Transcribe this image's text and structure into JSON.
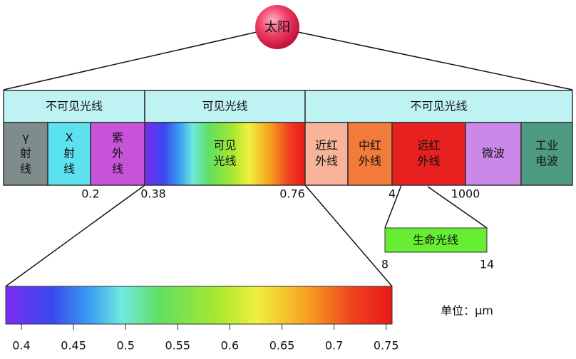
{
  "sun": {
    "label": "太阳"
  },
  "top_band": [
    {
      "label": "不可见光线"
    },
    {
      "label": "可见光线"
    },
    {
      "label": "不可见光线"
    }
  ],
  "segments": [
    {
      "lines": [
        "γ",
        "射",
        "线"
      ]
    },
    {
      "lines": [
        "X",
        "射",
        "线"
      ]
    },
    {
      "lines": [
        "紫",
        "外",
        "线"
      ]
    },
    {
      "lines": [
        "可见",
        "光线"
      ]
    },
    {
      "lines": [
        "近红",
        "外线"
      ]
    },
    {
      "lines": [
        "中红",
        "外线"
      ]
    },
    {
      "lines": [
        "远红",
        "外线"
      ]
    },
    {
      "lines": [
        "微波"
      ]
    },
    {
      "lines": [
        "工业",
        "电波"
      ]
    }
  ],
  "boundary_labels": [
    "0.2",
    "0.38",
    "0.76",
    "4",
    "1000"
  ],
  "life_band": {
    "label": "生命光线",
    "start": "8",
    "end": "14"
  },
  "spectrum_ticks": [
    "0.4",
    "0.45",
    "0.5",
    "0.55",
    "0.6",
    "0.65",
    "0.7",
    "0.75"
  ],
  "unit": "单位：μm"
}
